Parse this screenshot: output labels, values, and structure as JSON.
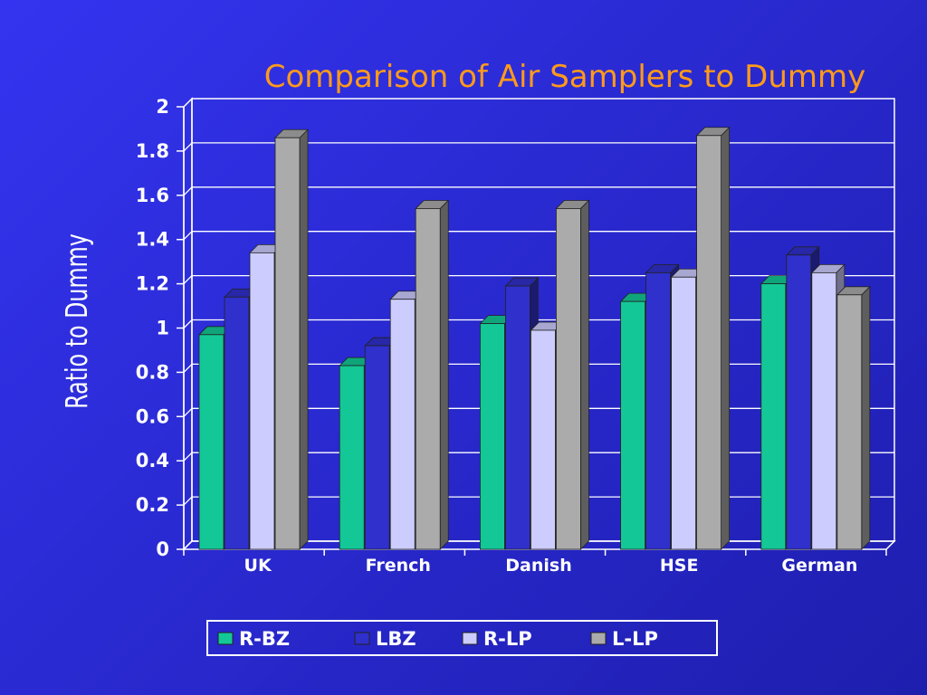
{
  "chart_data": {
    "type": "bar",
    "title": "Comparison of Air Samplers to Dummy",
    "ylabel": "Ratio to Dummy",
    "xlabel": "",
    "categories": [
      "UK",
      "French",
      "Danish",
      "HSE",
      "German"
    ],
    "series": [
      {
        "name": "R-BZ",
        "color": "#13c896",
        "values": [
          0.97,
          0.83,
          1.02,
          1.12,
          1.2
        ]
      },
      {
        "name": "LBZ",
        "color": "#3030cc",
        "values": [
          1.14,
          0.92,
          1.19,
          1.25,
          1.33
        ]
      },
      {
        "name": "R-LP",
        "color": "#ccccff",
        "values": [
          1.34,
          1.13,
          0.99,
          1.23,
          1.25
        ]
      },
      {
        "name": "L-LP",
        "color": "#ababab",
        "values": [
          1.86,
          1.54,
          1.54,
          1.87,
          1.15
        ]
      }
    ],
    "ylim": [
      0,
      2
    ],
    "yticks": [
      "0",
      "0.2",
      "0.4",
      "0.6",
      "0.8",
      "1",
      "1.2",
      "1.4",
      "1.6",
      "1.8",
      "2"
    ],
    "grid": true,
    "legend_position": "bottom"
  },
  "colors": {
    "background": "#2a2ad2",
    "title": "#ff9a1a",
    "axis_text": "#ffffff",
    "grid": "#ffffff",
    "legend_box": "#ffffff"
  }
}
